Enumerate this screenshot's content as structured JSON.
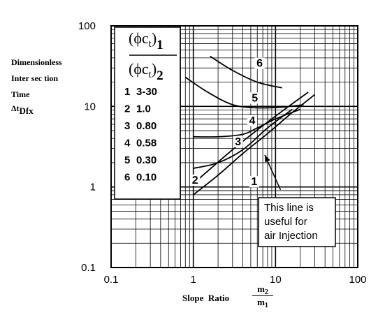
{
  "chart_data": {
    "type": "line",
    "xscale": "log",
    "yscale": "log",
    "xlim": [
      0.1,
      100
    ],
    "ylim": [
      0.1,
      100
    ],
    "xticks": [
      "0.1",
      "1",
      "10",
      "100"
    ],
    "yticks": [
      "0.1",
      "1",
      "10",
      "100"
    ],
    "ylabel_lines": [
      "Dimensionless",
      "Inter sec tion",
      "Time"
    ],
    "ylabel_symbol": "Δt",
    "ylabel_sub": "Dfx",
    "xlabel": "Slope  Ratio",
    "xlabel_num": "m",
    "xlabel_num_sub": "2",
    "xlabel_den": "m",
    "xlabel_den_sub": "1",
    "legend_num": "(ϕc",
    "legend_num_sub": "t",
    "legend_num_close": ")",
    "legend_num_idx": "1",
    "legend_den": "(ϕc",
    "legend_den_sub": "t",
    "legend_den_close": ")",
    "legend_den_idx": "2",
    "legend_entries": [
      {
        "id": "1",
        "value": "3-30"
      },
      {
        "id": "2",
        "value": "1.0"
      },
      {
        "id": "3",
        "value": "0.80"
      },
      {
        "id": "4",
        "value": "0.58"
      },
      {
        "id": "5",
        "value": "0.30"
      },
      {
        "id": "6",
        "value": "0.10"
      }
    ],
    "series": [
      {
        "label": "1",
        "x": [
          1,
          2,
          4,
          8,
          16,
          30
        ],
        "y": [
          0.8,
          1.4,
          2.6,
          4.6,
          8.4,
          14
        ]
      },
      {
        "label": "2",
        "x": [
          1,
          3,
          6,
          12,
          25
        ],
        "y": [
          1.1,
          2.9,
          5.1,
          8.7,
          15
        ]
      },
      {
        "label": "3",
        "x": [
          1,
          2,
          4,
          8,
          16
        ],
        "y": [
          1.7,
          2.0,
          2.9,
          5.4,
          9.2
        ]
      },
      {
        "label": "4",
        "x": [
          1,
          2,
          4,
          6,
          10,
          20
        ],
        "y": [
          4.2,
          4.2,
          4.5,
          5.4,
          7.0,
          9.2
        ]
      },
      {
        "label": "5",
        "x": [
          0.8,
          1.5,
          3,
          6,
          12,
          22
        ],
        "y": [
          23,
          15,
          10.5,
          9.6,
          9.8,
          10.5
        ]
      },
      {
        "label": "6",
        "x": [
          1.6,
          3,
          6,
          12
        ],
        "y": [
          42,
          28,
          20,
          17
        ]
      }
    ],
    "curve_label_positions": [
      {
        "label": "6",
        "x": 6.4,
        "y": 31
      },
      {
        "label": "5",
        "x": 5.6,
        "y": 11.5
      },
      {
        "label": "4",
        "x": 5.2,
        "y": 6.0
      },
      {
        "label": "3",
        "x": 3.5,
        "y": 3.3
      },
      {
        "label": "2",
        "x": 1.05,
        "y": 1.1
      },
      {
        "label": "1",
        "x": 5.5,
        "y": 1.05
      }
    ],
    "annotation": {
      "lines": [
        "This line is",
        "useful for",
        "air Injection"
      ],
      "arrow_from": [
        11.5,
        0.92
      ],
      "arrow_to": [
        7.4,
        2.5
      ]
    }
  }
}
